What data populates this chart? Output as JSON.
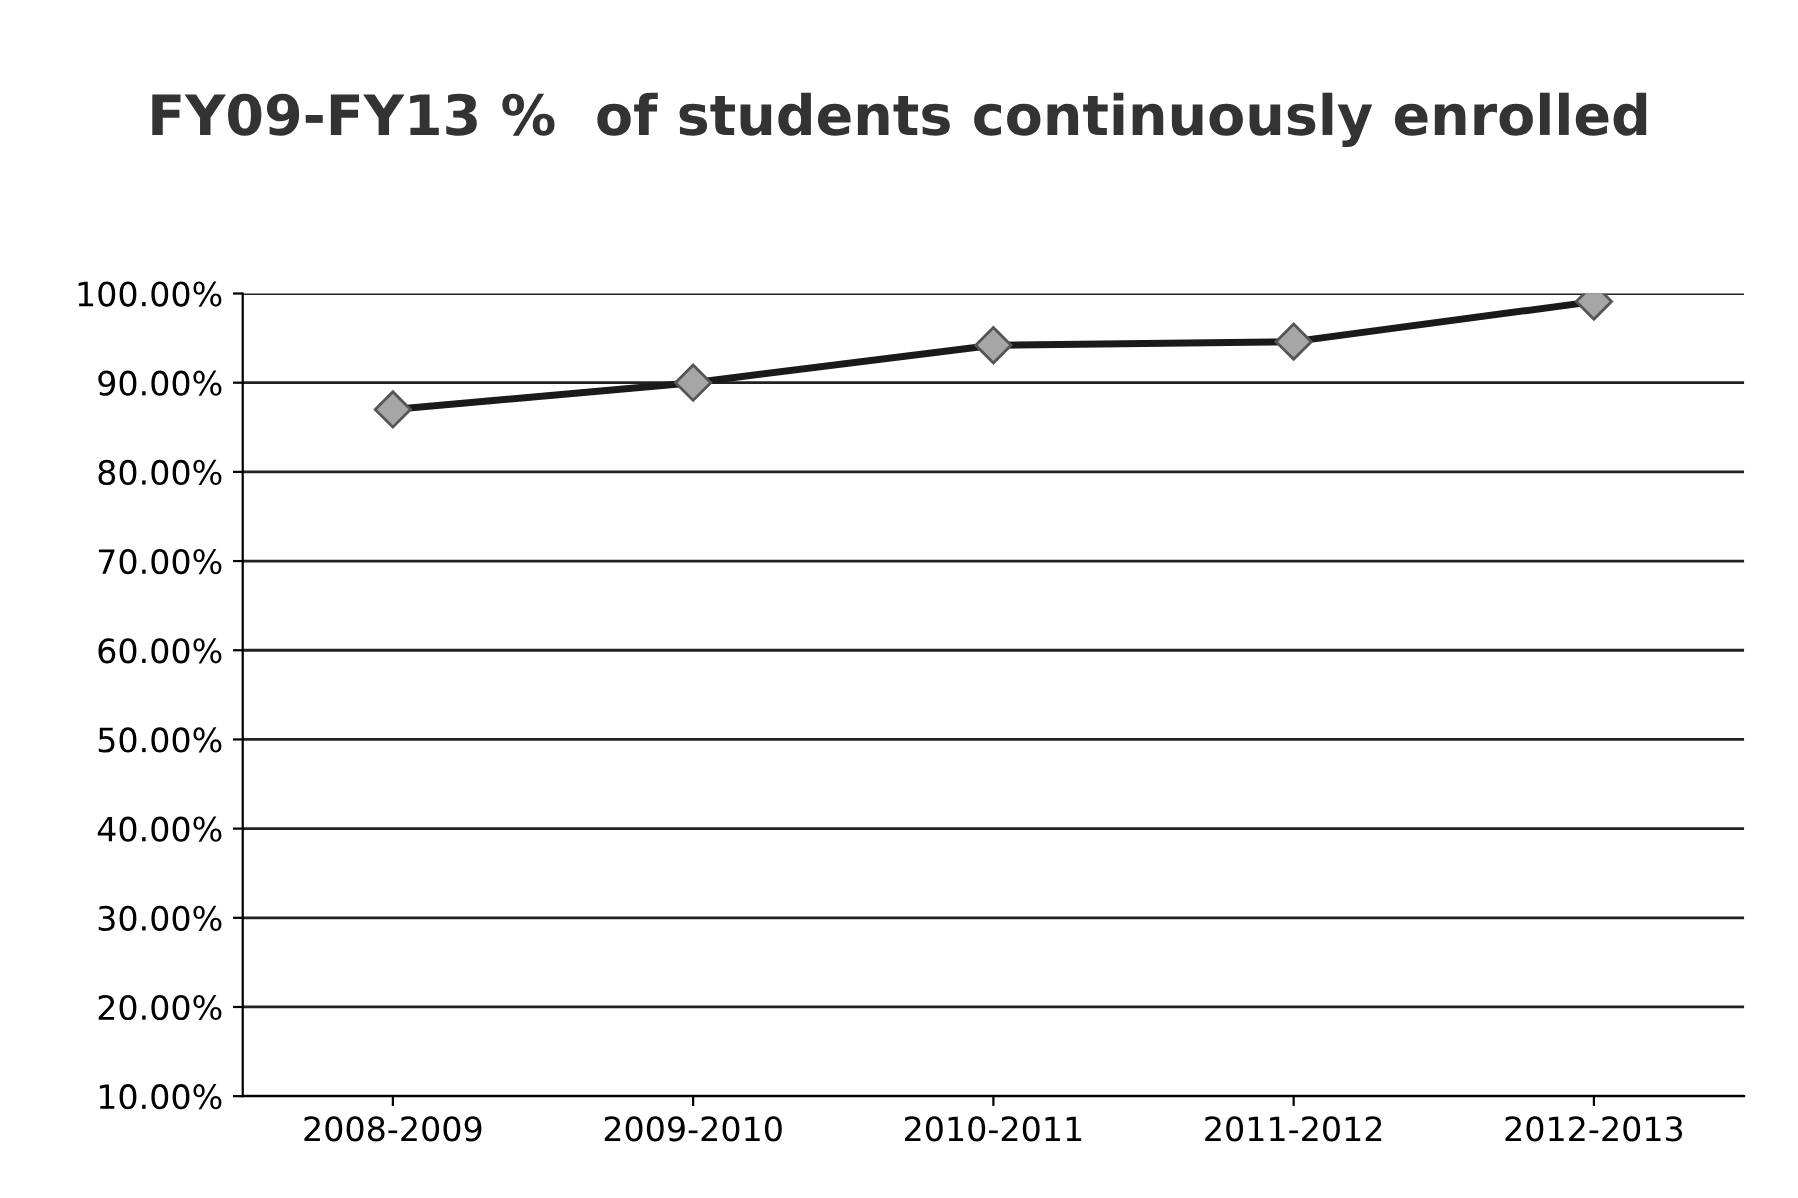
{
  "chart_data": {
    "type": "line",
    "title": "FY09-FY13 %  of students continuously enrolled",
    "categories": [
      "2008-2009",
      "2009-2010",
      "2010-2011",
      "2011-2012",
      "2012-2013"
    ],
    "series": [
      {
        "color": "#1a1a1a",
        "values": [
          87.0,
          90.0,
          94.2,
          94.6,
          99.1
        ]
      }
    ],
    "ylim": [
      10,
      100
    ],
    "yticks": [
      {
        "value": 10,
        "label": "10.00%"
      },
      {
        "value": 20,
        "label": "20.00%"
      },
      {
        "value": 30,
        "label": "30.00%"
      },
      {
        "value": 40,
        "label": "40.00%"
      },
      {
        "value": 50,
        "label": "50.00%"
      },
      {
        "value": 60,
        "label": "60.00%"
      },
      {
        "value": 70,
        "label": "70.00%"
      },
      {
        "value": 80,
        "label": "80.00%"
      },
      {
        "value": 90,
        "label": "90.00%"
      },
      {
        "value": 100,
        "label": "100.00%"
      }
    ],
    "grid": "y",
    "marker": "diamond",
    "line_style": "solid"
  }
}
